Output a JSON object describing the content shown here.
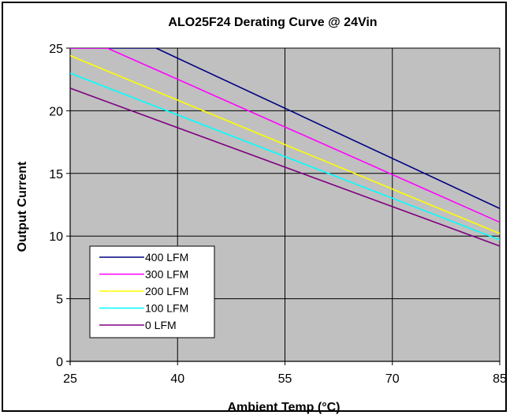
{
  "chart_data": {
    "type": "line",
    "title": "ALO25F24 Derating Curve @ 24Vin",
    "xlabel": "Ambient Temp (°C)",
    "ylabel": "Output Current",
    "xlim": [
      25,
      85
    ],
    "ylim": [
      0,
      25
    ],
    "xticks": [
      25,
      40,
      55,
      70,
      85
    ],
    "yticks": [
      0,
      5,
      10,
      15,
      20,
      25
    ],
    "grid": true,
    "plot_background": "#c0c0c0",
    "legend_position": "bottom-left",
    "series": [
      {
        "name": "400 LFM",
        "color": "#000080",
        "x": [
          25,
          37.0,
          85
        ],
        "y": [
          25,
          25,
          12.2
        ]
      },
      {
        "name": "300 LFM",
        "color": "#ff00ff",
        "x": [
          25,
          30.2,
          85
        ],
        "y": [
          25,
          25,
          11.1
        ]
      },
      {
        "name": "200 LFM",
        "color": "#ffff00",
        "x": [
          25,
          85
        ],
        "y": [
          24.4,
          10.2
        ]
      },
      {
        "name": "100 LFM",
        "color": "#00ffff",
        "x": [
          25,
          85
        ],
        "y": [
          23.0,
          9.7
        ]
      },
      {
        "name": "0 LFM",
        "color": "#800080",
        "x": [
          25,
          85
        ],
        "y": [
          21.8,
          9.2
        ]
      }
    ]
  }
}
